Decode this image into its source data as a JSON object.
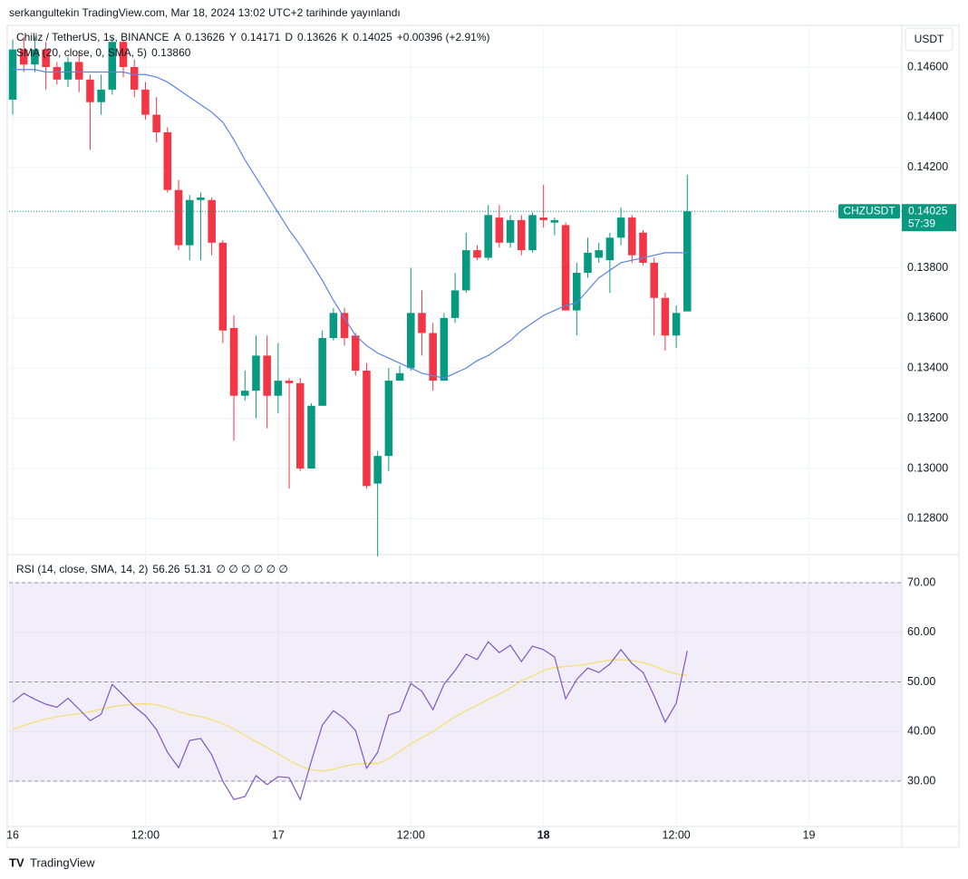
{
  "header": "serkangultekin TradingView.com, Mar 18, 2024 13:02 UTC+2 tarihinde yayınlandı",
  "footer": "TradingView",
  "currency": "USDT",
  "chart_data": [
    {
      "type": "candlestick",
      "title": "Chiliz / TetherUS, 1s, BINANCE",
      "ohlc_legend": [
        {
          "key": "A",
          "value": "0.13626"
        },
        {
          "key": "Y",
          "value": "0.14171"
        },
        {
          "key": "D",
          "value": "0.13626"
        },
        {
          "key": "K",
          "value": "0.14025"
        }
      ],
      "change": "+0.00396 (+2.91%)",
      "symbol": "CHZUSDT",
      "last_price": "0.14025",
      "countdown": "57:39",
      "up_color": "#089981",
      "down_color": "#f23645",
      "x": [
        0,
        1,
        2,
        3,
        4,
        5,
        6,
        7,
        8,
        9,
        10,
        11,
        12,
        13,
        14,
        15,
        16,
        17,
        18,
        19,
        20,
        21,
        22,
        23,
        24,
        25,
        26,
        27,
        28,
        29,
        30,
        31,
        32,
        33,
        34,
        35,
        36,
        37,
        38,
        39,
        40,
        41,
        42,
        43,
        44,
        45,
        46,
        47,
        48,
        49,
        50,
        51,
        52,
        53,
        54,
        55,
        56,
        57,
        58,
        59,
        60,
        61
      ],
      "open": [
        0.1447,
        0.1467,
        0.1461,
        0.1467,
        0.146,
        0.1455,
        0.1462,
        0.1455,
        0.1446,
        0.1451,
        0.147,
        0.146,
        0.1451,
        0.1441,
        0.1434,
        0.1411,
        0.1389,
        0.1407,
        0.1407,
        0.139,
        0.1356,
        0.1329,
        0.1331,
        0.1345,
        0.1329,
        0.1335,
        0.1334,
        0.13,
        0.1325,
        0.1352,
        0.1362,
        0.1353,
        0.1339,
        0.1294,
        0.1305,
        0.1335,
        0.134,
        0.1362,
        0.1354,
        0.1335,
        0.136,
        0.1371,
        0.1387,
        0.1384,
        0.14,
        0.139,
        0.1399,
        0.1387,
        0.14,
        0.1398,
        0.1397,
        0.1363,
        0.1378,
        0.1384,
        0.1383,
        0.1392,
        0.14,
        0.1394,
        0.1382,
        0.1368,
        0.1353,
        0.13626
      ],
      "high": [
        0.1471,
        0.1472,
        0.1472,
        0.147,
        0.1462,
        0.1464,
        0.1466,
        0.1457,
        0.1457,
        0.1472,
        0.1471,
        0.1463,
        0.1454,
        0.1448,
        0.1436,
        0.1415,
        0.1409,
        0.141,
        0.1408,
        0.1391,
        0.1361,
        0.1339,
        0.1353,
        0.1353,
        0.135,
        0.1336,
        0.1336,
        0.1326,
        0.1355,
        0.1364,
        0.1364,
        0.1354,
        0.1342,
        0.1307,
        0.134,
        0.1341,
        0.138,
        0.1371,
        0.1358,
        0.1362,
        0.1378,
        0.1394,
        0.1389,
        0.1405,
        0.1405,
        0.1401,
        0.1401,
        0.1402,
        0.1413,
        0.14,
        0.1398,
        0.1382,
        0.1392,
        0.139,
        0.1394,
        0.1404,
        0.1401,
        0.1395,
        0.1384,
        0.137,
        0.1365,
        0.14171
      ],
      "low": [
        0.1441,
        0.1458,
        0.1458,
        0.1451,
        0.1453,
        0.1452,
        0.145,
        0.1427,
        0.1441,
        0.1449,
        0.1456,
        0.1448,
        0.1439,
        0.143,
        0.141,
        0.1387,
        0.1383,
        0.1383,
        0.1385,
        0.135,
        0.1311,
        0.1327,
        0.132,
        0.1316,
        0.1322,
        0.1292,
        0.1299,
        0.13,
        0.1325,
        0.1351,
        0.1349,
        0.1337,
        0.1292,
        0.1265,
        0.1299,
        0.1335,
        0.1339,
        0.1345,
        0.1331,
        0.1335,
        0.1358,
        0.137,
        0.1383,
        0.1383,
        0.1388,
        0.1388,
        0.1385,
        0.1386,
        0.1396,
        0.1393,
        0.1363,
        0.1353,
        0.1376,
        0.1382,
        0.137,
        0.1389,
        0.1382,
        0.1381,
        0.1353,
        0.1347,
        0.1348,
        0.13626
      ],
      "close": [
        0.1467,
        0.1461,
        0.1467,
        0.146,
        0.1455,
        0.1462,
        0.1455,
        0.1446,
        0.1451,
        0.147,
        0.146,
        0.1451,
        0.1441,
        0.1434,
        0.1411,
        0.1389,
        0.1407,
        0.1408,
        0.139,
        0.1355,
        0.1329,
        0.1331,
        0.1345,
        0.1329,
        0.1335,
        0.1334,
        0.13,
        0.1325,
        0.1352,
        0.1362,
        0.1352,
        0.1339,
        0.1293,
        0.1305,
        0.1335,
        0.1338,
        0.1362,
        0.1354,
        0.1335,
        0.136,
        0.1371,
        0.1387,
        0.1384,
        0.1401,
        0.139,
        0.1399,
        0.1387,
        0.1401,
        0.1399,
        0.1399,
        0.1363,
        0.1378,
        0.1386,
        0.1387,
        0.1392,
        0.14,
        0.1385,
        0.1382,
        0.1368,
        0.1353,
        0.1362,
        0.14025
      ],
      "series": [
        {
          "name": "SMA (20, close, 0, SMA, 5)",
          "color": "#5b84e0",
          "value_label": "0.13860",
          "values": [
            0.1459,
            0.1459,
            0.1459,
            0.1458,
            0.1458,
            0.1458,
            0.1458,
            0.1458,
            0.1458,
            0.1458,
            0.1458,
            0.1457,
            0.1457,
            0.1456,
            0.1454,
            0.1451,
            0.1448,
            0.1445,
            0.1442,
            0.1438,
            0.1431,
            0.1423,
            0.1416,
            0.1409,
            0.1402,
            0.1395,
            0.1389,
            0.1382,
            0.1375,
            0.1367,
            0.136,
            0.1353,
            0.1349,
            0.1346,
            0.1344,
            0.1342,
            0.134,
            0.1338,
            0.1337,
            0.1336,
            0.1338,
            0.134,
            0.1343,
            0.1345,
            0.1348,
            0.1351,
            0.1355,
            0.1358,
            0.1361,
            0.1363,
            0.1365,
            0.1366,
            0.1371,
            0.1376,
            0.1379,
            0.1382,
            0.1383,
            0.1384,
            0.1385,
            0.1386,
            0.1386,
            0.1386
          ]
        }
      ],
      "xlim": [
        -0.33,
        80.4
      ],
      "ylim": [
        0.12657,
        0.14766
      ],
      "yticks": [
        {
          "value": 0.128,
          "label": "0.12800"
        },
        {
          "value": 0.13,
          "label": "0.13000"
        },
        {
          "value": 0.132,
          "label": "0.13200"
        },
        {
          "value": 0.134,
          "label": "0.13400"
        },
        {
          "value": 0.136,
          "label": "0.13600"
        },
        {
          "value": 0.138,
          "label": "0.13800"
        },
        {
          "value": 0.142,
          "label": "0.14200"
        },
        {
          "value": 0.144,
          "label": "0.14400"
        },
        {
          "value": 0.146,
          "label": "0.14600"
        }
      ],
      "xticks": [
        {
          "value": 0,
          "label": "16"
        },
        {
          "value": 12,
          "label": "12:00"
        },
        {
          "value": 24,
          "label": "17"
        },
        {
          "value": 36,
          "label": "12:00"
        },
        {
          "value": 48,
          "label": "18"
        },
        {
          "value": 60,
          "label": "12:00"
        },
        {
          "value": 72,
          "label": "19"
        }
      ],
      "grid": true
    },
    {
      "type": "line",
      "title": "RSI (14, close, SMA, 14, 2)",
      "extra_labels": "∅ ∅ ∅ ∅ ∅ ∅",
      "band": [
        30,
        70
      ],
      "midline": 50,
      "band_color": "rgba(126,87,194,0.1)",
      "series": [
        {
          "name": "RSI",
          "color": "#7e57c2",
          "value_label": "56.26",
          "values": [
            45.9,
            47.7,
            46.5,
            45.5,
            44.9,
            46.7,
            44.5,
            42.2,
            43.5,
            49.5,
            47.3,
            45.0,
            43.2,
            40.4,
            35.8,
            32.7,
            38.2,
            38.6,
            35.3,
            30.0,
            26.3,
            26.9,
            31.1,
            29.3,
            30.9,
            30.7,
            26.3,
            34.0,
            41.3,
            44.2,
            42.6,
            40.2,
            32.6,
            35.8,
            43.3,
            44.1,
            49.7,
            48.1,
            44.4,
            49.5,
            52.3,
            55.6,
            54.5,
            58.1,
            55.9,
            57.4,
            54.1,
            57.2,
            56.5,
            55.0,
            46.6,
            50.5,
            52.8,
            51.9,
            53.6,
            56.5,
            53.7,
            51.9,
            47.2,
            41.9,
            45.7,
            56.26
          ]
        },
        {
          "name": "RSI SMA",
          "color": "#f5dd6b",
          "value_label": "51.31",
          "values": [
            40.4,
            41.2,
            41.9,
            42.5,
            43.0,
            43.3,
            43.6,
            44.0,
            44.5,
            45.0,
            45.3,
            45.5,
            45.6,
            45.4,
            44.8,
            44.0,
            43.4,
            43.0,
            42.4,
            41.6,
            40.5,
            39.2,
            38.0,
            36.8,
            35.5,
            34.2,
            33.0,
            32.3,
            32.0,
            32.4,
            33.0,
            33.4,
            33.6,
            33.5,
            34.5,
            36.0,
            37.5,
            38.8,
            40.0,
            41.5,
            43.0,
            44.2,
            45.3,
            46.5,
            47.5,
            48.8,
            50.2,
            51.2,
            52.3,
            52.9,
            53.1,
            53.3,
            53.6,
            54.0,
            54.4,
            54.5,
            54.3,
            53.9,
            53.2,
            52.3,
            51.6,
            51.31
          ]
        }
      ],
      "ylim": [
        20.87,
        75.66
      ],
      "yticks": [
        {
          "value": 30,
          "label": "30.00"
        },
        {
          "value": 40,
          "label": "40.00"
        },
        {
          "value": 50,
          "label": "50.00"
        },
        {
          "value": 60,
          "label": "60.00"
        },
        {
          "value": 70,
          "label": "70.00"
        }
      ],
      "grid": true
    }
  ]
}
